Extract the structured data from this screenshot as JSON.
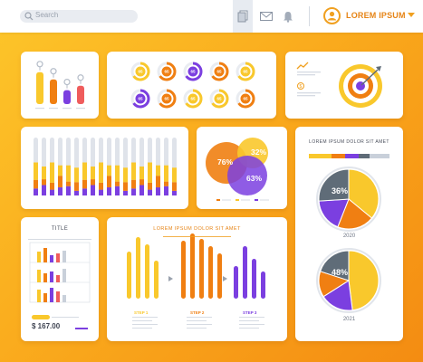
{
  "search": {
    "placeholder": "Search"
  },
  "user": {
    "name": "LOREM IPSUM"
  },
  "panel_bars_small": {
    "chart_data": {
      "type": "bar",
      "values": [
        80,
        62,
        35,
        46
      ],
      "colors": [
        "#f9c82c",
        "#f07f12",
        "#7b3fe0",
        "#ef5c5c"
      ]
    }
  },
  "panel_donuts": {
    "values": [
      "65",
      "65",
      "65",
      "65",
      "65",
      "65",
      "65",
      "65",
      "65",
      "65"
    ]
  },
  "panel_bigbars": {
    "chart_data": {
      "type": "bar",
      "stacks": 18
    }
  },
  "venn": {
    "labels": [
      "76%",
      "32%",
      "63%"
    ]
  },
  "right_card": {
    "title": "LOREM IPSUM DOLOR SIT AMET",
    "year1": "2020",
    "year2": "2021",
    "pie1": {
      "chart_data": {
        "type": "pie",
        "label": "36%",
        "values": [
          36,
          20,
          18,
          26
        ],
        "colors": [
          "#f9c82c",
          "#f07f12",
          "#7b3fe0",
          "#5f6c78"
        ]
      }
    },
    "pie2": {
      "chart_data": {
        "type": "pie",
        "label": "48%",
        "values": [
          48,
          18,
          14,
          20
        ],
        "colors": [
          "#f9c82c",
          "#7b3fe0",
          "#f07f12",
          "#5f6c78"
        ]
      }
    }
  },
  "title_card": {
    "title": "TITLE",
    "price": "$ 167.00"
  },
  "steps_card": {
    "title": "LOREM IPSUM DOLOR SIT AMET",
    "steps": [
      "STEP 1",
      "STEP 2",
      "STEP 3"
    ]
  }
}
